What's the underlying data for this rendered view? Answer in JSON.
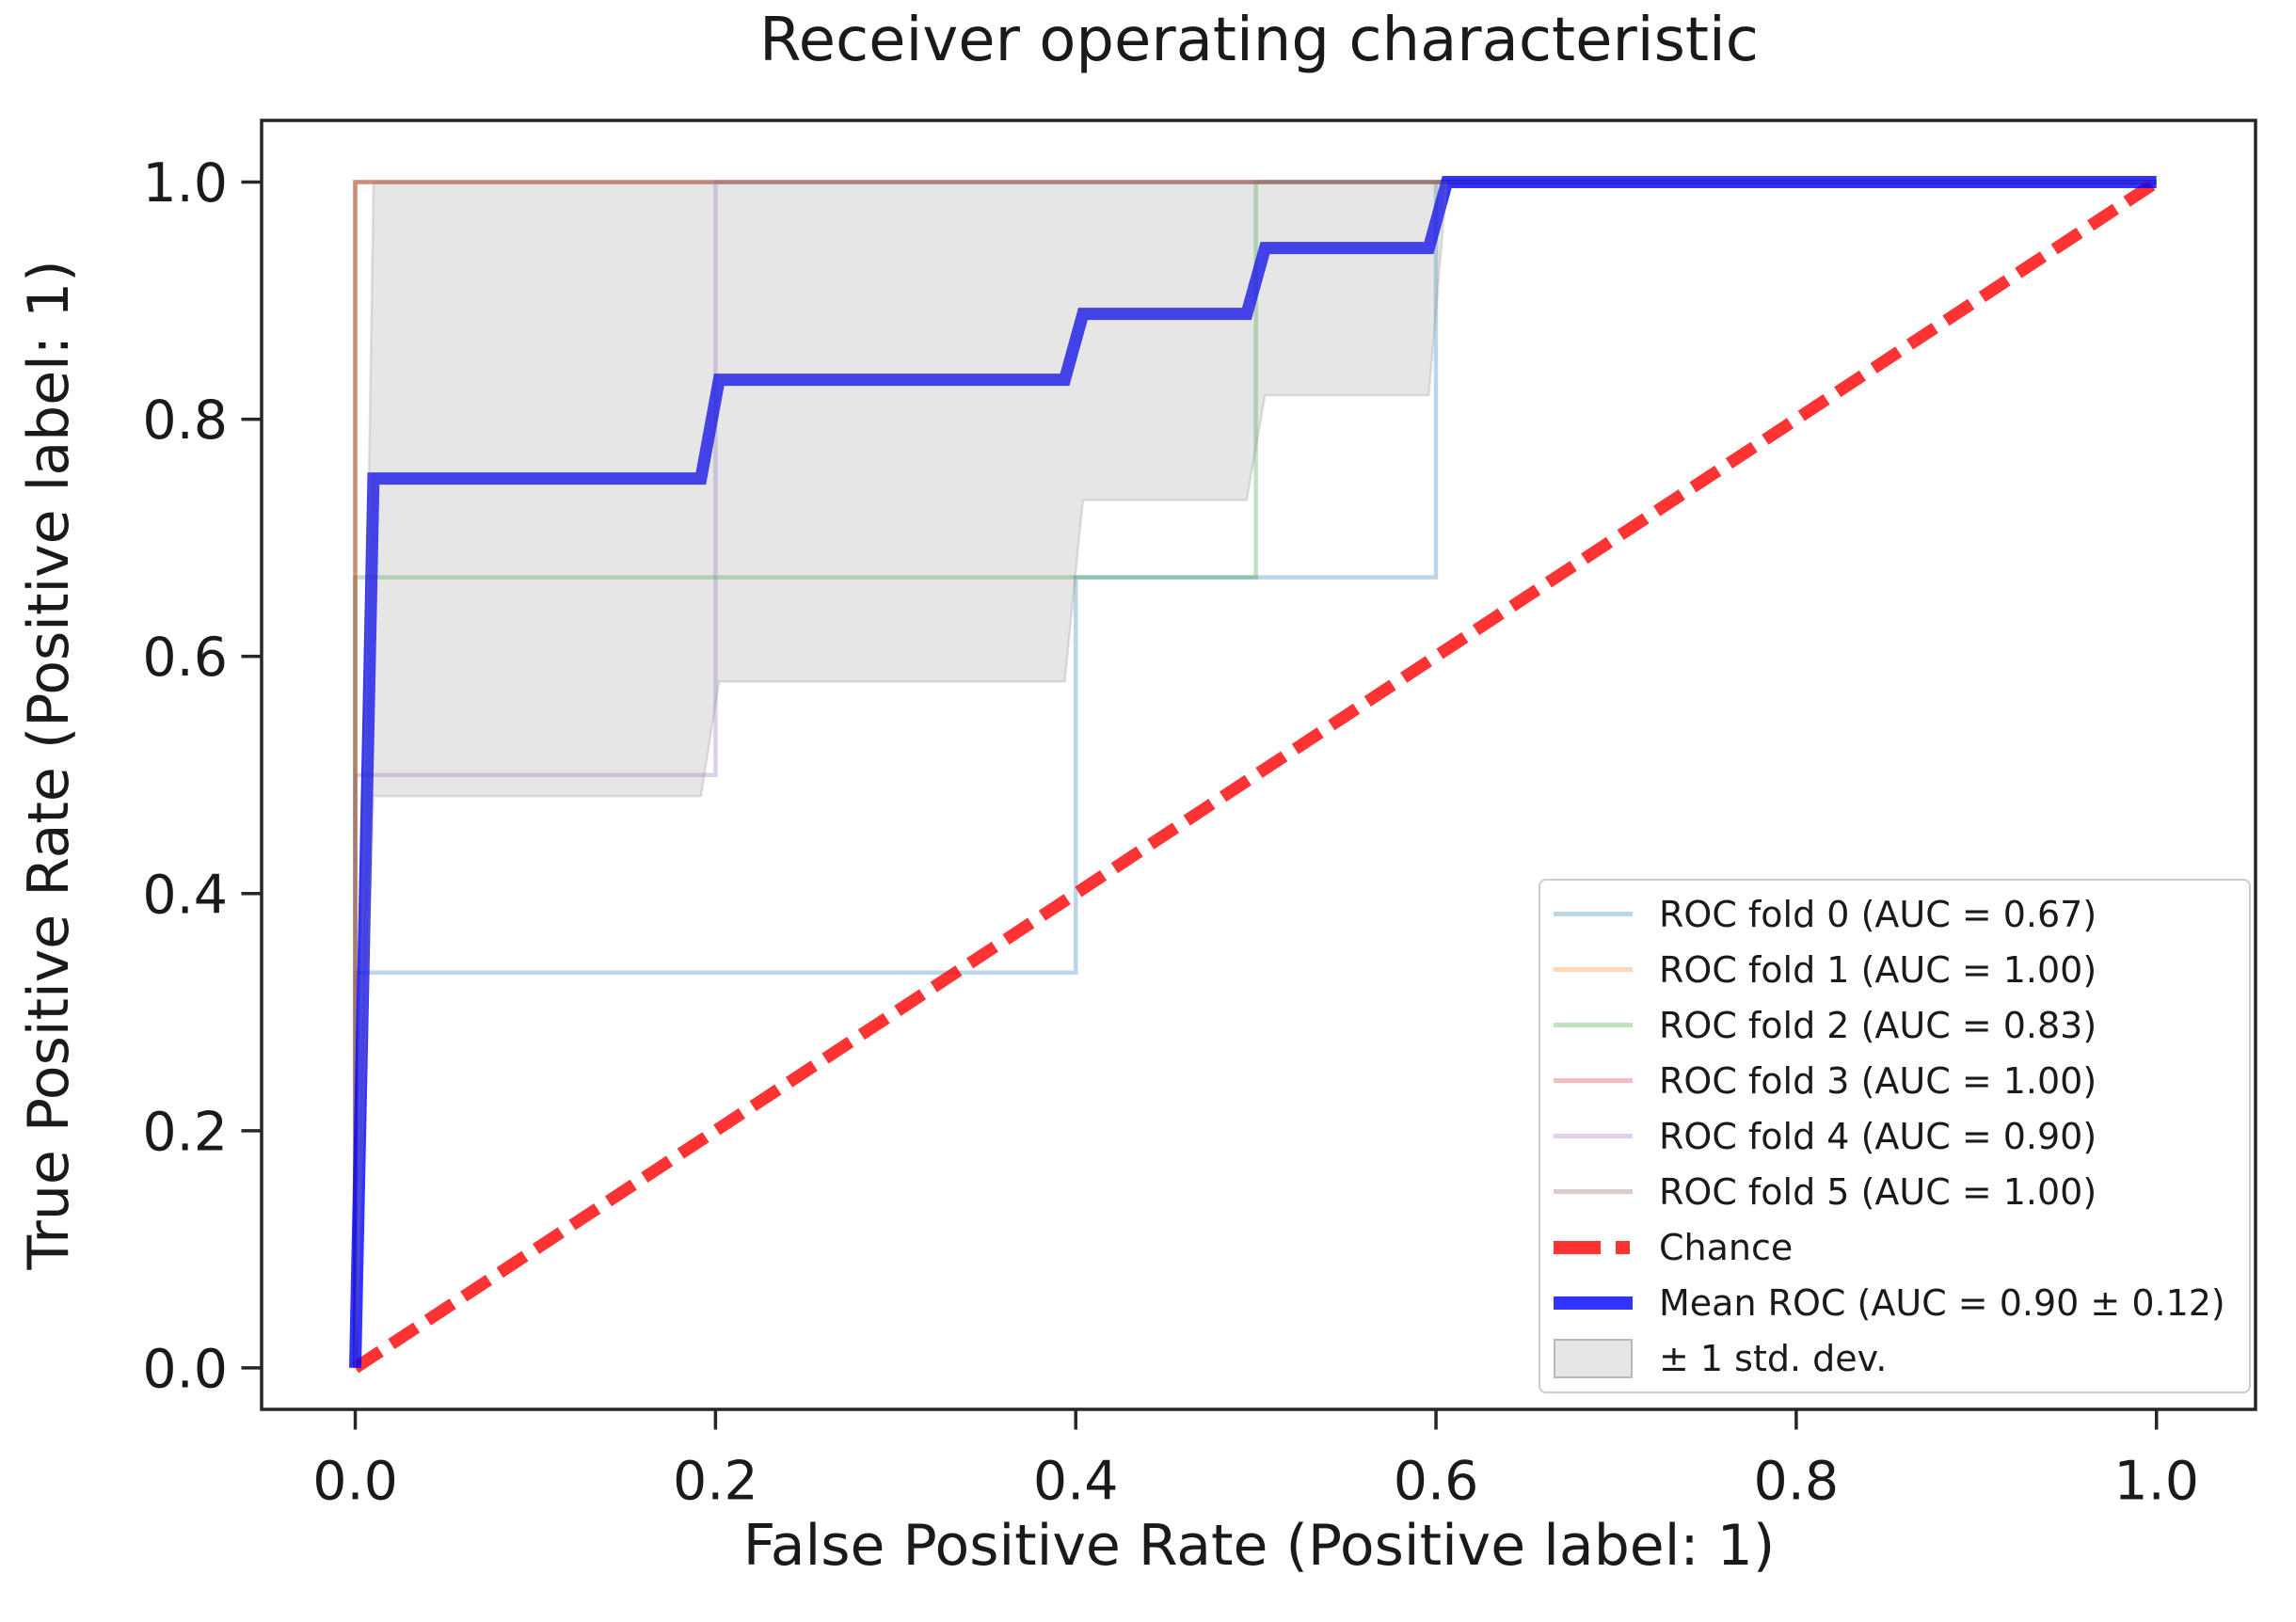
{
  "chart_data": {
    "type": "line",
    "title": "Receiver operating characteristic",
    "xlabel": "False Positive Rate (Positive label: 1)",
    "ylabel": "True Positive Rate (Positive label: 1)",
    "x_ticks": [
      {
        "value": 0.0,
        "label": "0.0"
      },
      {
        "value": 0.2,
        "label": "0.2"
      },
      {
        "value": 0.4,
        "label": "0.4"
      },
      {
        "value": 0.6,
        "label": "0.6"
      },
      {
        "value": 0.8,
        "label": "0.8"
      },
      {
        "value": 1.0,
        "label": "1.0"
      }
    ],
    "y_ticks": [
      {
        "value": 0.0,
        "label": "0.0"
      },
      {
        "value": 0.2,
        "label": "0.2"
      },
      {
        "value": 0.4,
        "label": "0.4"
      },
      {
        "value": 0.6,
        "label": "0.6"
      },
      {
        "value": 0.8,
        "label": "0.8"
      },
      {
        "value": 1.0,
        "label": "1.0"
      }
    ],
    "xlim": [
      -0.052,
      1.055
    ],
    "ylim": [
      -0.035,
      1.052
    ],
    "grid": false,
    "legend_position": "lower right",
    "series": [
      {
        "name": "ROC fold 0",
        "auc": 0.67,
        "color": "rgba(31,119,180,0.3)",
        "width": 4.5,
        "points": [
          [
            0,
            0
          ],
          [
            0,
            0.3333
          ],
          [
            0.4,
            0.3333
          ],
          [
            0.4,
            0.6667
          ],
          [
            0.6,
            0.6667
          ],
          [
            0.6,
            1
          ],
          [
            1,
            1
          ]
        ]
      },
      {
        "name": "ROC fold 1",
        "auc": 1.0,
        "color": "rgba(255,127,14,0.3)",
        "width": 4.5,
        "points": [
          [
            0,
            0
          ],
          [
            0,
            1
          ],
          [
            1,
            1
          ]
        ]
      },
      {
        "name": "ROC fold 2",
        "auc": 0.83,
        "color": "rgba(44,160,44,0.3)",
        "width": 4.5,
        "points": [
          [
            0,
            0
          ],
          [
            0,
            0.6667
          ],
          [
            0.5,
            0.6667
          ],
          [
            0.5,
            1
          ],
          [
            1,
            1
          ]
        ]
      },
      {
        "name": "ROC fold 3",
        "auc": 1.0,
        "color": "rgba(214,39,40,0.3)",
        "width": 4.5,
        "points": [
          [
            0,
            0
          ],
          [
            0,
            1
          ],
          [
            1,
            1
          ]
        ]
      },
      {
        "name": "ROC fold 4",
        "auc": 0.9,
        "color": "rgba(148,103,189,0.3)",
        "width": 4.5,
        "points": [
          [
            0,
            0
          ],
          [
            0,
            0.5
          ],
          [
            0.2,
            0.5
          ],
          [
            0.2,
            1
          ],
          [
            1,
            1
          ]
        ]
      },
      {
        "name": "ROC fold 5",
        "auc": 1.0,
        "color": "rgba(140,86,75,0.3)",
        "width": 4.5,
        "points": [
          [
            0,
            0
          ],
          [
            0,
            1
          ],
          [
            1,
            1
          ]
        ]
      }
    ],
    "chance": {
      "name": "Chance",
      "color": "rgba(255,0,0,0.8)",
      "width": 13,
      "dash": "32 14",
      "points": [
        [
          0,
          0
        ],
        [
          1,
          1
        ]
      ]
    },
    "mean": {
      "name": "Mean ROC",
      "auc": 0.9,
      "auc_std": 0.12,
      "color": "rgba(0,0,255,0.8)",
      "width": 13,
      "points": [
        [
          0,
          0
        ],
        [
          0.0101,
          0.75
        ],
        [
          0.1919,
          0.75
        ],
        [
          0.202,
          0.8333
        ],
        [
          0.3939,
          0.8333
        ],
        [
          0.404,
          0.8889
        ],
        [
          0.4949,
          0.8889
        ],
        [
          0.5051,
          0.9444
        ],
        [
          0.596,
          0.9444
        ],
        [
          0.6061,
          1.0
        ],
        [
          1,
          1
        ]
      ]
    },
    "band": {
      "name": "± 1 std. dev.",
      "fill": "rgba(128,128,128,0.2)",
      "edge": "rgba(128,128,128,0.22)",
      "lower": [
        [
          0,
          0
        ],
        [
          0.0101,
          0.4821
        ],
        [
          0.1919,
          0.4821
        ],
        [
          0.202,
          0.5787
        ],
        [
          0.3939,
          0.5787
        ],
        [
          0.404,
          0.7318
        ],
        [
          0.4949,
          0.7318
        ],
        [
          0.5051,
          0.8202
        ],
        [
          0.596,
          0.8202
        ],
        [
          0.6061,
          1.0
        ]
      ],
      "upper": [
        [
          0,
          0
        ],
        [
          0.0101,
          1.0
        ],
        [
          1,
          1
        ]
      ]
    }
  },
  "axes": {
    "spine_color": "#262626",
    "tick_color": "#262626",
    "tick_label_color": "#1a1a1a"
  },
  "legend": {
    "entries": [
      {
        "label": "ROC fold 0 (AUC = 0.67)",
        "type": "line",
        "color": "rgba(31,119,180,0.3)"
      },
      {
        "label": "ROC fold 1 (AUC = 1.00)",
        "type": "line",
        "color": "rgba(255,127,14,0.3)"
      },
      {
        "label": "ROC fold 2 (AUC = 0.83)",
        "type": "line",
        "color": "rgba(44,160,44,0.3)"
      },
      {
        "label": "ROC fold 3 (AUC = 1.00)",
        "type": "line",
        "color": "rgba(214,39,40,0.3)"
      },
      {
        "label": "ROC fold 4 (AUC = 0.90)",
        "type": "line",
        "color": "rgba(148,103,189,0.3)"
      },
      {
        "label": "ROC fold 5 (AUC = 1.00)",
        "type": "line",
        "color": "rgba(140,86,75,0.3)"
      },
      {
        "label": "Chance",
        "type": "dashed",
        "color": "rgba(255,0,0,0.8)"
      },
      {
        "label": "Mean ROC (AUC = 0.90 ± 0.12)",
        "type": "thick",
        "color": "rgba(0,0,255,0.8)"
      },
      {
        "label": "± 1 std. dev.",
        "type": "patch",
        "color": "rgba(128,128,128,0.2)",
        "border": "rgba(128,128,128,0.45)"
      }
    ]
  }
}
